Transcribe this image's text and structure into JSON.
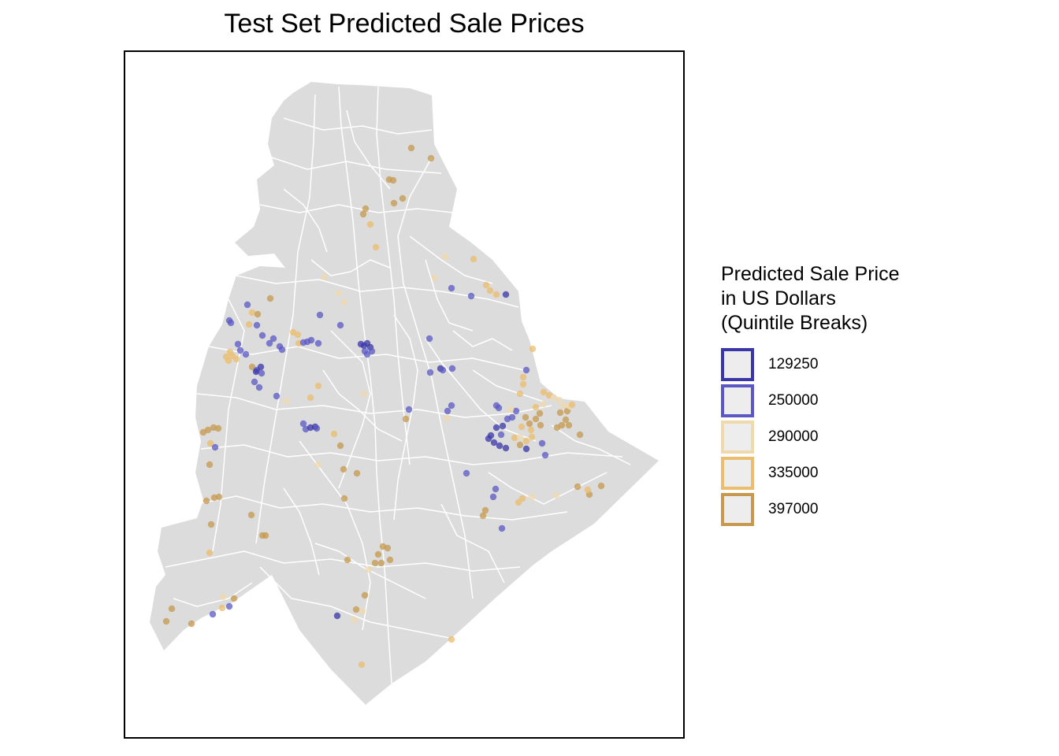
{
  "title": "Test Set Predicted Sale Prices",
  "legend": {
    "title_lines": [
      "Predicted Sale Price",
      "in US Dollars",
      "(Quintile Breaks)"
    ],
    "items": [
      {
        "label": "129250",
        "color": "#3a37a8"
      },
      {
        "label": "250000",
        "color": "#5b58c4"
      },
      {
        "label": "290000",
        "color": "#f0d9ad"
      },
      {
        "label": "335000",
        "color": "#ebbd6e"
      },
      {
        "label": "397000",
        "color": "#c6994f"
      }
    ]
  },
  "colors": {
    "land": "#dcdcdc",
    "boundary": "#ffffff",
    "background": "#ffffff"
  }
}
